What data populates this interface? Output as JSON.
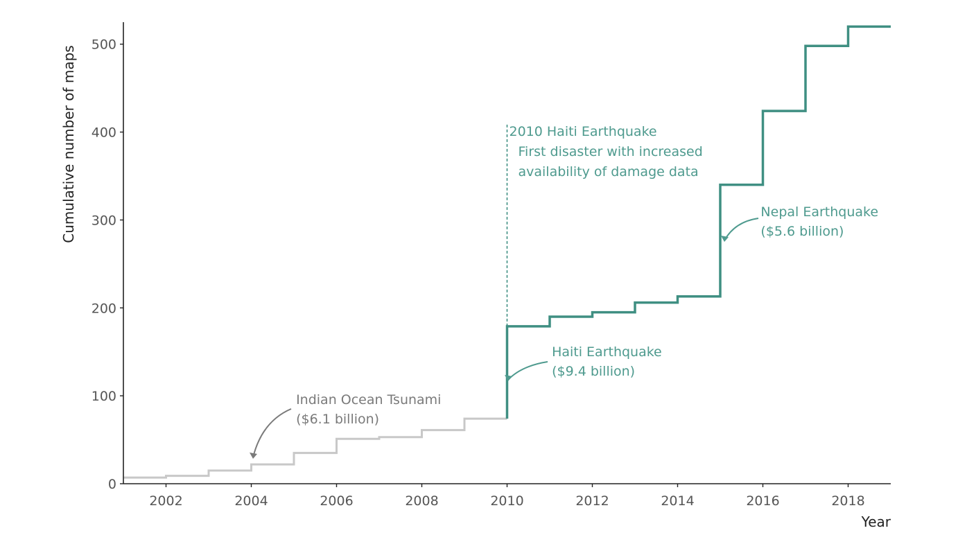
{
  "chart_data": {
    "type": "line",
    "step": true,
    "xlabel": "Year",
    "ylabel": "Cumulative number of maps",
    "xlim": [
      2001,
      2019
    ],
    "ylim": [
      0,
      525
    ],
    "x_ticks": [
      2002,
      2004,
      2006,
      2008,
      2010,
      2012,
      2014,
      2016,
      2018
    ],
    "y_ticks": [
      0,
      100,
      200,
      300,
      400,
      500
    ],
    "grid": false,
    "colors": {
      "before_2010": "#c8c8c8",
      "after_2010": "#3f8f82",
      "annotation": "#4e9a8e",
      "tsunami_annotation": "#7a7a7a"
    },
    "series": [
      {
        "x": [
          2001,
          2002,
          2003,
          2004,
          2005,
          2006,
          2007,
          2008,
          2009,
          2010
        ],
        "y": [
          7,
          9,
          15,
          22,
          35,
          51,
          53,
          61,
          74,
          74
        ]
      },
      {
        "x": [
          2010,
          2011,
          2012,
          2013,
          2014,
          2015,
          2016,
          2017,
          2018,
          2019
        ],
        "y": [
          179,
          190,
          195,
          206,
          213,
          340,
          424,
          498,
          520,
          520
        ]
      }
    ],
    "annotations": [
      {
        "lines": [
          "Indian Ocean Tsunami",
          "($6.1 billion)"
        ],
        "x": 2004,
        "y": 22,
        "color": "#7a7a7a"
      },
      {
        "lines": [
          "Haiti Earthquake",
          "($9.4 billion)"
        ],
        "x": 2010,
        "y": 118,
        "color": "#4e9a8e"
      },
      {
        "lines": [
          "Nepal Earthquake",
          "($5.6 billion)"
        ],
        "x": 2015,
        "y": 275,
        "color": "#4e9a8e"
      },
      {
        "lines": [
          "2010 Haiti Earthquake",
          "First disaster with increased",
          "availability of damage data"
        ],
        "x": 2010,
        "y": 410,
        "color": "#4e9a8e"
      }
    ],
    "marker_line": {
      "x": 2010,
      "y_from": 179,
      "y_to": 410
    }
  }
}
